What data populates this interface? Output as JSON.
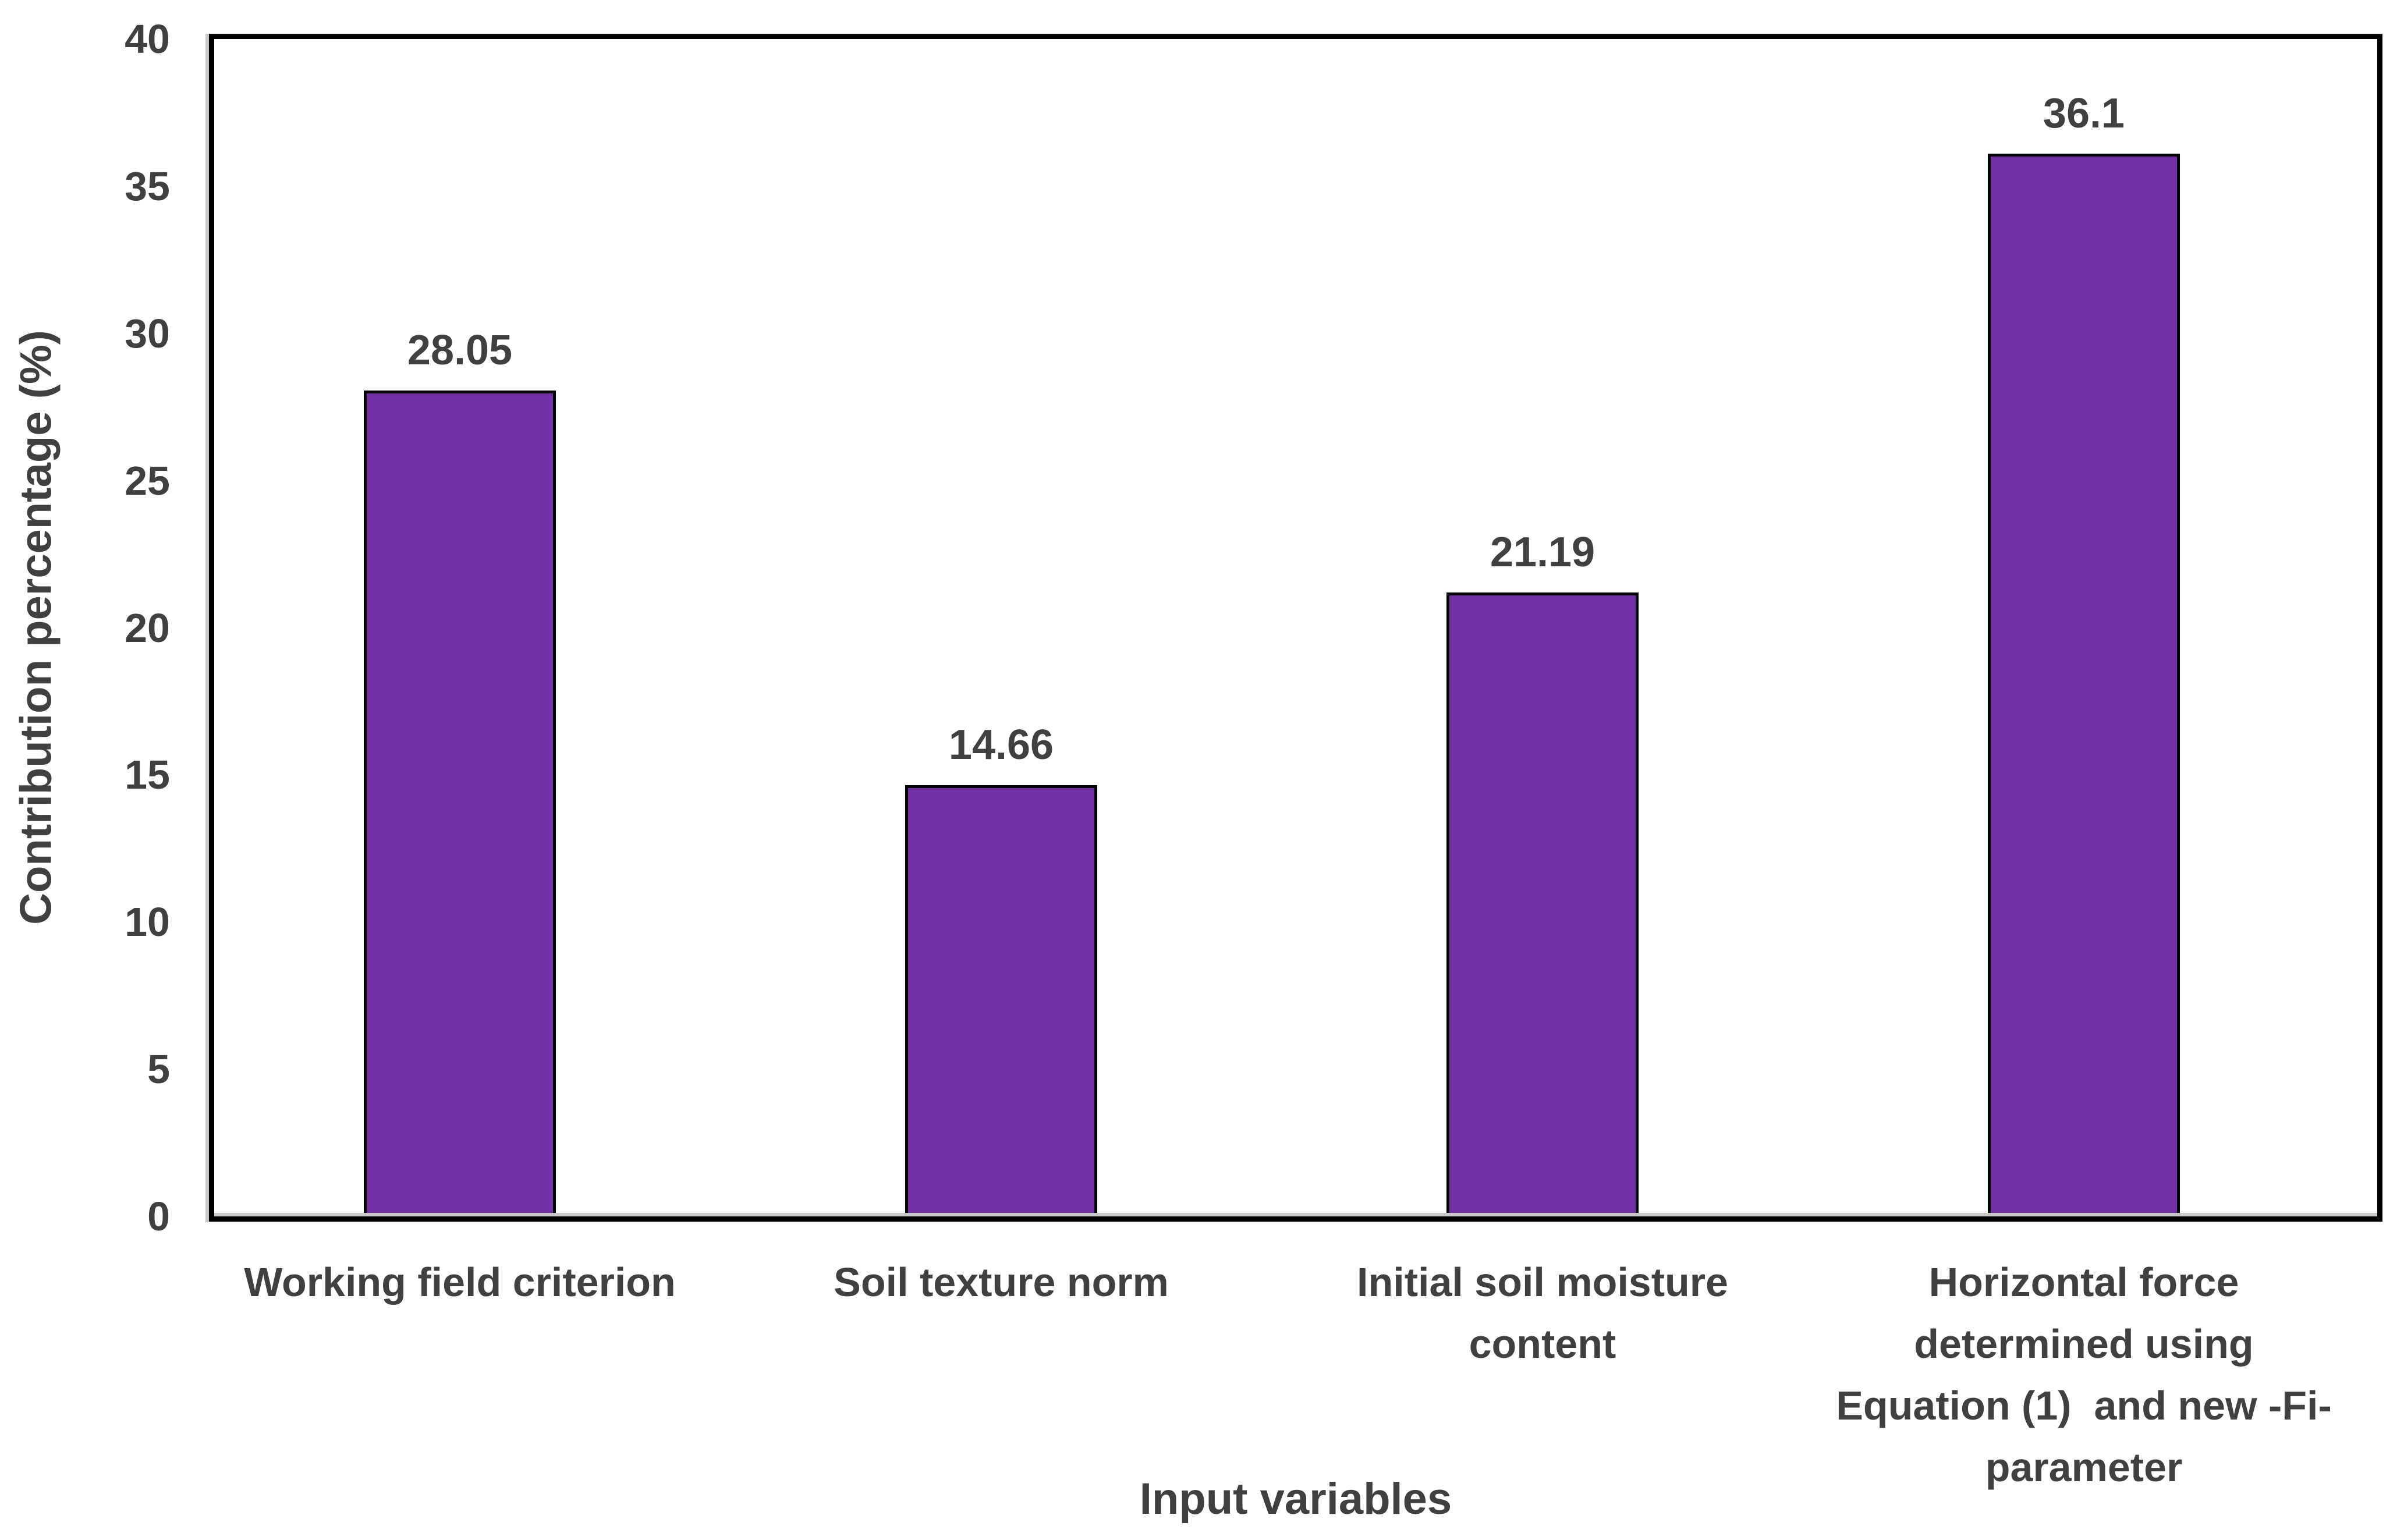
{
  "chart_data": {
    "type": "bar",
    "title": "",
    "xlabel": "Input variables",
    "ylabel": "Contribution percentage (%)",
    "ylim": [
      0,
      40
    ],
    "ytick_step": 5,
    "yticks": [
      "0",
      "5",
      "10",
      "15",
      "20",
      "25",
      "30",
      "35",
      "40"
    ],
    "categories": [
      "Working field criterion",
      "Soil texture norm",
      "Initial soil moisture content",
      "Horizontal force determined using Equation (1)  and new -Fi- parameter"
    ],
    "category_lines": [
      [
        "Working field criterion"
      ],
      [
        "Soil texture norm"
      ],
      [
        "Initial soil moisture",
        "content"
      ],
      [
        "Horizontal force",
        "determined using",
        "Equation (1)  and new -Fi-",
        "parameter"
      ]
    ],
    "values": [
      28.05,
      14.66,
      21.19,
      36.1
    ],
    "data_labels": [
      "28.05",
      "14.66",
      "21.19",
      "36.1"
    ],
    "bar_fill": "#7130A3",
    "bar_border": "#000000",
    "plot_border": "#000000",
    "axis_line_color": "#C8C8C8",
    "text_color": "#404040",
    "grid": false,
    "legend": false
  }
}
